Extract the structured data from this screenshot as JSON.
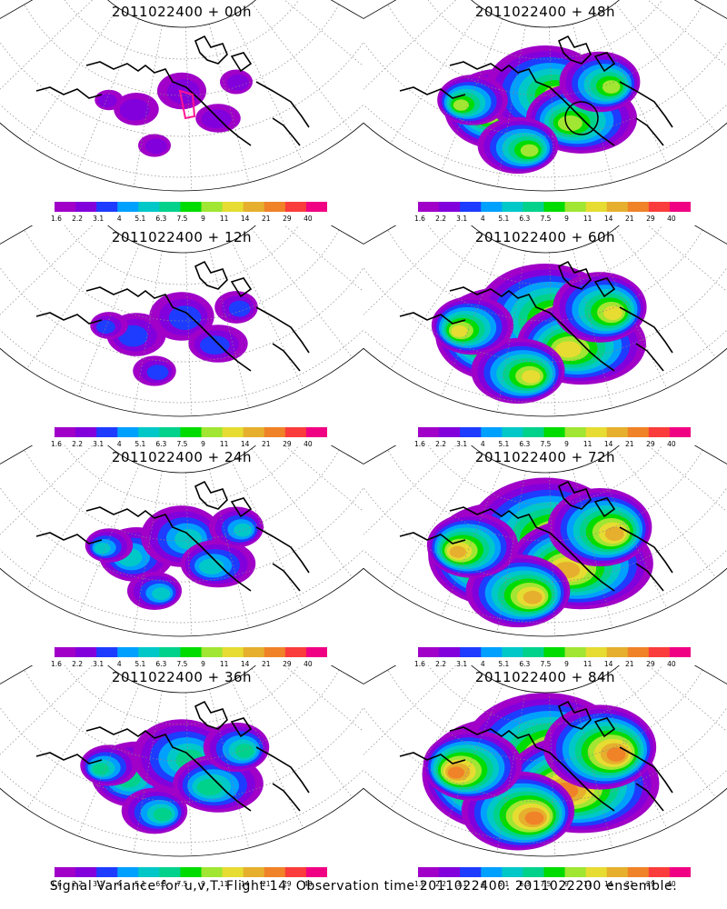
{
  "panels": [
    {
      "title": "2011022400  +  00h",
      "col": 0,
      "row": 0,
      "intensity": 0.0,
      "marker": "rect-red"
    },
    {
      "title": "2011022400  +  48h",
      "col": 1,
      "row": 0,
      "intensity": 0.55,
      "marker": "circle-black"
    },
    {
      "title": "2011022400  +  12h",
      "col": 0,
      "row": 1,
      "intensity": 0.12,
      "marker": ""
    },
    {
      "title": "2011022400  +  60h",
      "col": 1,
      "row": 1,
      "intensity": 0.7,
      "marker": ""
    },
    {
      "title": "2011022400  +  24h",
      "col": 0,
      "row": 2,
      "intensity": 0.25,
      "marker": ""
    },
    {
      "title": "2011022400  +  72h",
      "col": 1,
      "row": 2,
      "intensity": 0.82,
      "marker": ""
    },
    {
      "title": "2011022400  +  36h",
      "col": 0,
      "row": 3,
      "intensity": 0.38,
      "marker": ""
    },
    {
      "title": "2011022400  +  84h",
      "col": 1,
      "row": 3,
      "intensity": 0.92,
      "marker": ""
    }
  ],
  "colorbar": {
    "colors": [
      "#a000c8",
      "#8200dc",
      "#1e3cff",
      "#00a0ff",
      "#00c8c8",
      "#00d28c",
      "#00dc00",
      "#a0e632",
      "#e6dc32",
      "#e6af2d",
      "#f08228",
      "#fa3c3c",
      "#f00082"
    ],
    "labels": [
      "1.6",
      "2.2",
      "3.1",
      "4",
      "5.1",
      "6.3",
      "7.5",
      "9",
      "11",
      "14",
      "21",
      "29",
      "40"
    ]
  },
  "caption": "Signal Variance for u,v,T. Flight 14. Observation time 2011022400. 2011022200 ensemble."
}
